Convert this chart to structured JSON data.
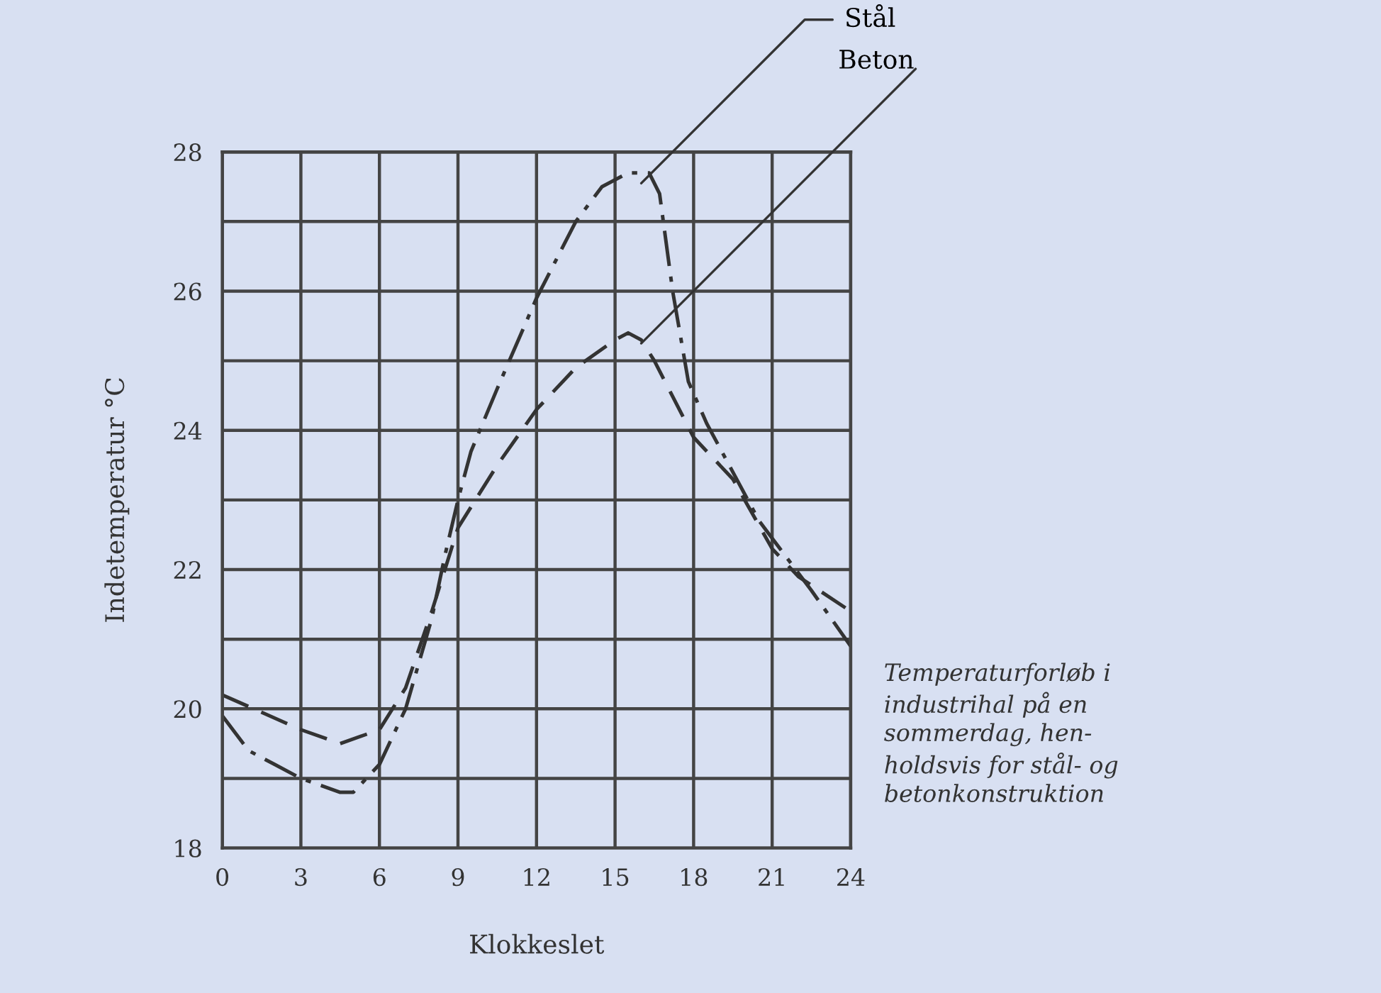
{
  "chart_data": {
    "type": "line",
    "xlabel": "Klokkeslet",
    "ylabel": "Indetemperatur °C",
    "xlim": [
      0,
      24
    ],
    "xticks": [
      0,
      3,
      6,
      9,
      12,
      15,
      18,
      21,
      24
    ],
    "ylim": [
      18,
      28
    ],
    "yticks": [
      18,
      {
        "value": 19,
        "label": null
      },
      20,
      {
        "value": 21,
        "label": null
      },
      22,
      {
        "value": 23,
        "label": null
      },
      24,
      {
        "value": 25,
        "label": null
      },
      26,
      {
        "value": 27,
        "label": null
      },
      28
    ],
    "grid": true,
    "marker": "none",
    "annotations": [
      "Temperaturforløb i\nindustrihal på en\nsommerdag, hen-\nholdsvis for stål- og\nbetonkonstruktion"
    ],
    "series": [
      {
        "name": "Stål",
        "color": "#333333",
        "line_style": "dashdot",
        "x": [
          0,
          1,
          2,
          3,
          4.5,
          5,
          6,
          7,
          8,
          8.5,
          9,
          9.5,
          10.5,
          12,
          13.5,
          14.5,
          15.5,
          16.3,
          16.7,
          17.2,
          17.8,
          18.5,
          19.5,
          20.5,
          21.5,
          22.5,
          24
        ],
        "values": [
          19.9,
          19.4,
          19.2,
          19.0,
          18.8,
          18.8,
          19.2,
          20.0,
          21.3,
          22.2,
          23.0,
          23.7,
          24.6,
          25.9,
          27.0,
          27.5,
          27.7,
          27.7,
          27.4,
          26.0,
          24.7,
          24.1,
          23.4,
          22.7,
          22.2,
          21.7,
          20.9
        ]
      },
      {
        "name": "Beton",
        "color": "#333333",
        "line_style": "dashed",
        "x": [
          0,
          3,
          4.5,
          6,
          7,
          8,
          9,
          10.5,
          12,
          13.5,
          15,
          15.5,
          16,
          16.5,
          18,
          19.5,
          21,
          22,
          24
        ],
        "values": [
          20.2,
          19.7,
          19.5,
          19.7,
          20.3,
          21.4,
          22.6,
          23.5,
          24.3,
          24.9,
          25.3,
          25.4,
          25.3,
          25.0,
          23.9,
          23.3,
          22.3,
          21.9,
          21.4
        ]
      }
    ]
  }
}
